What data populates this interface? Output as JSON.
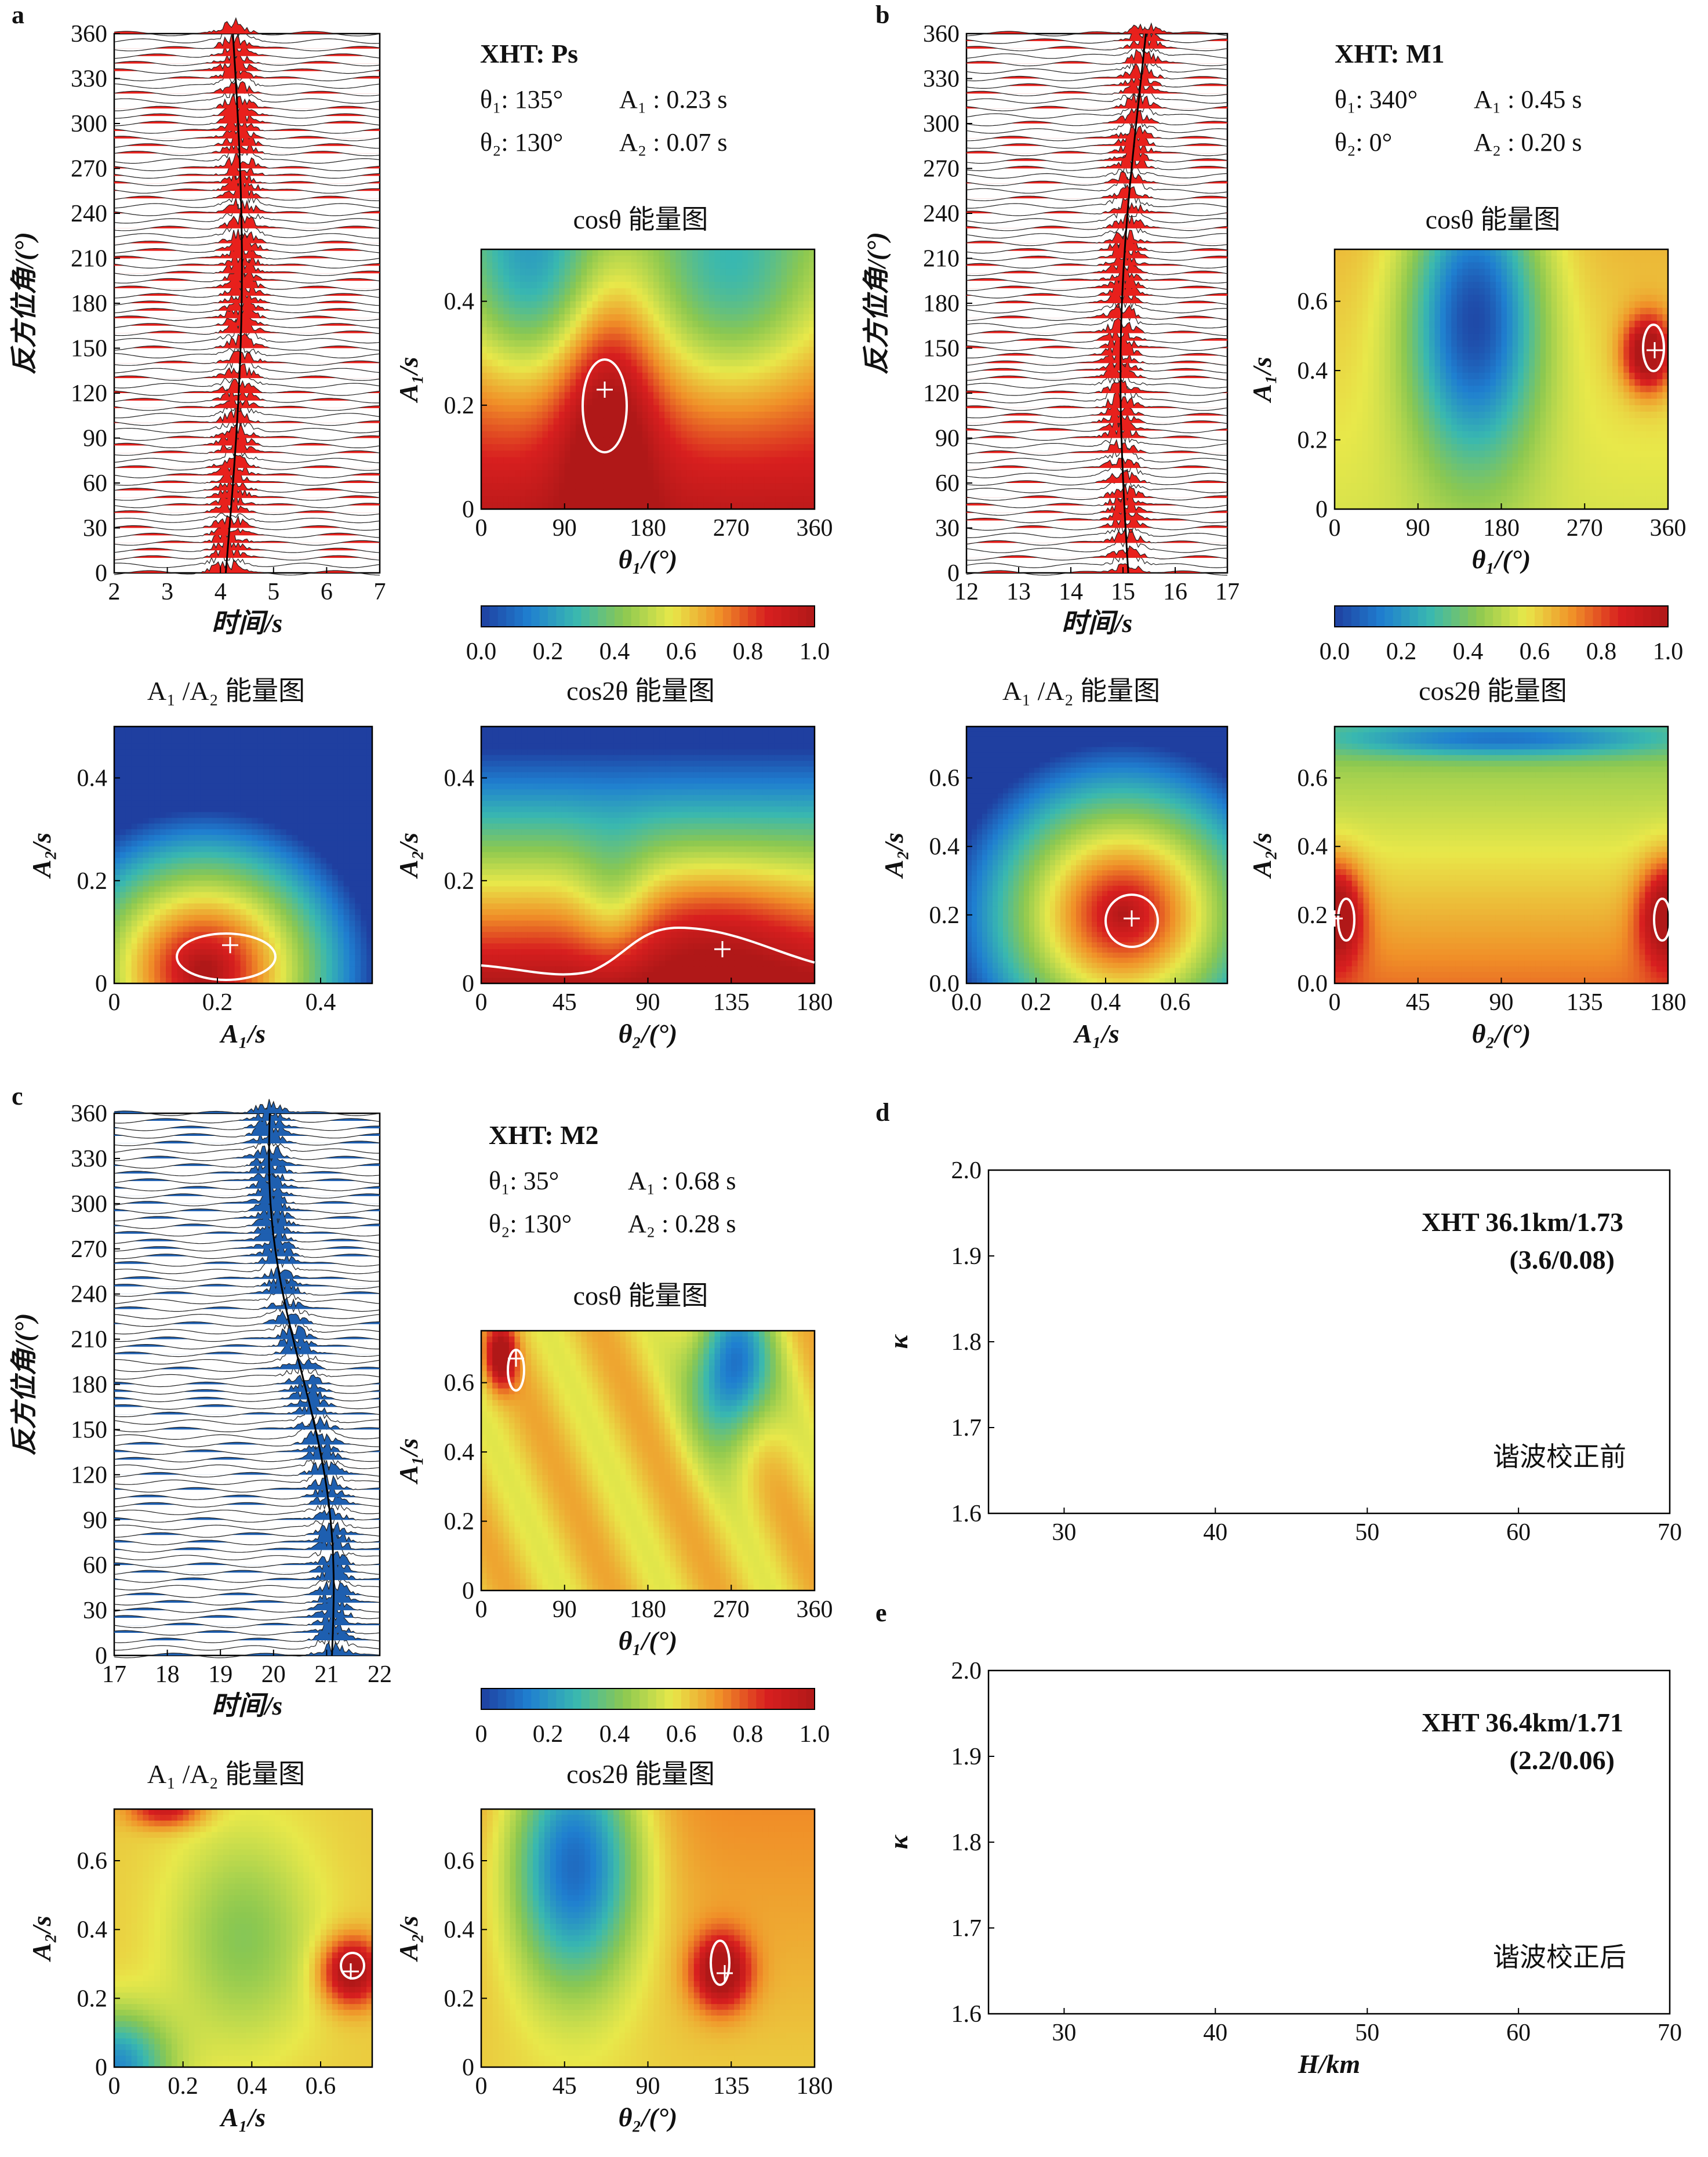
{
  "panels": {
    "a": {
      "letter": "a",
      "title": "XHT: Ps",
      "t1": "θ₁: 135°",
      "a1": "A₁ : 0.23 s",
      "t2": "θ₂: 130°",
      "a2": "A₂ : 0.07 s",
      "wave": {
        "xlabel": "时间/s",
        "ylabel": "反方位角/(°)",
        "xticks": [
          "2",
          "3",
          "4",
          "5",
          "6",
          "7"
        ],
        "ytick_vals": [
          0,
          30,
          60,
          90,
          120,
          150,
          180,
          210,
          240,
          270,
          300,
          330,
          360
        ],
        "fill": "#e8201c"
      },
      "cos": {
        "title": "cosθ 能量图",
        "xlabel": "θ₁/(°)",
        "ylabel": "A₁/s",
        "xticks": [
          "0",
          "90",
          "180",
          "270",
          "360"
        ],
        "yticks": [
          "0",
          "0.2",
          "0.4"
        ]
      },
      "a1a2": {
        "title": "A₁ /A₂ 能量图",
        "xlabel": "A₁/s",
        "ylabel": "A₂/s",
        "xticks": [
          "0",
          "0.2",
          "0.4"
        ],
        "yticks": [
          "0",
          "0.2",
          "0.4"
        ]
      },
      "cos2": {
        "title": "cos2θ 能量图",
        "xlabel": "θ₂/(°)",
        "ylabel": "A₂/s",
        "xticks": [
          "0",
          "45",
          "90",
          "135",
          "180"
        ],
        "yticks": [
          "0",
          "0.2",
          "0.4"
        ]
      }
    },
    "b": {
      "letter": "b",
      "title": "XHT: M1",
      "t1": "θ₁: 340°",
      "a1": "A₁ : 0.45 s",
      "t2": "θ₂: 0°",
      "a2": "A₂ : 0.20 s",
      "wave": {
        "xlabel": "时间/s",
        "ylabel": "反方位角/(°)",
        "xticks": [
          "12",
          "13",
          "14",
          "15",
          "16",
          "17"
        ],
        "ytick_vals": [
          0,
          30,
          60,
          90,
          120,
          150,
          180,
          210,
          240,
          270,
          300,
          330,
          360
        ],
        "fill": "#e8201c"
      },
      "cos": {
        "title": "cosθ 能量图",
        "xlabel": "θ₁/(°)",
        "ylabel": "A₁/s",
        "xticks": [
          "0",
          "90",
          "180",
          "270",
          "360"
        ],
        "yticks": [
          "0",
          "0.2",
          "0.4",
          "0.6"
        ]
      },
      "a1a2": {
        "title": "A₁ /A₂ 能量图",
        "xlabel": "A₁/s",
        "ylabel": "A₂/s",
        "xticks": [
          "0.0",
          "0.2",
          "0.4",
          "0.6"
        ],
        "yticks": [
          "0.0",
          "0.2",
          "0.4",
          "0.6"
        ]
      },
      "cos2": {
        "title": "cos2θ 能量图",
        "xlabel": "θ₂/(°)",
        "ylabel": "A₂/s",
        "xticks": [
          "0",
          "45",
          "90",
          "135",
          "180"
        ],
        "yticks": [
          "0.0",
          "0.2",
          "0.4",
          "0.6"
        ]
      }
    },
    "c": {
      "letter": "c",
      "title": "XHT: M2",
      "t1": "θ₁: 35°",
      "a1": "A₁ : 0.68 s",
      "t2": "θ₂: 130°",
      "a2": "A₂ : 0.28 s",
      "wave": {
        "xlabel": "时间/s",
        "ylabel": "反方位角/(°)",
        "xticks": [
          "17",
          "18",
          "19",
          "20",
          "21",
          "22"
        ],
        "ytick_vals": [
          0,
          30,
          60,
          90,
          120,
          150,
          180,
          210,
          240,
          270,
          300,
          330,
          360
        ],
        "fill": "#1e5fb0"
      },
      "cos": {
        "title": "cosθ 能量图",
        "xlabel": "θ₁/(°)",
        "ylabel": "A₁/s",
        "xticks": [
          "0",
          "90",
          "180",
          "270",
          "360"
        ],
        "yticks": [
          "0",
          "0.2",
          "0.4",
          "0.6"
        ]
      },
      "a1a2": {
        "title": "A₁ /A₂ 能量图",
        "xlabel": "A₁/s",
        "ylabel": "A₂/s",
        "xticks": [
          "0",
          "0.2",
          "0.4",
          "0.6"
        ],
        "yticks": [
          "0",
          "0.2",
          "0.4",
          "0.6"
        ]
      },
      "cos2": {
        "title": "cos2θ 能量图",
        "xlabel": "θ₂/(°)",
        "ylabel": "A₂/s",
        "xticks": [
          "0",
          "45",
          "90",
          "135",
          "180"
        ],
        "yticks": [
          "0",
          "0.2",
          "0.4",
          "0.6"
        ]
      }
    },
    "d": {
      "letter": "d",
      "label1": "XHT 36.1km/1.73",
      "label2": "(3.6/0.08)",
      "note": "谐波校正前",
      "xticks": [
        "30",
        "40",
        "50",
        "60",
        "70"
      ],
      "yticks": [
        "1.6",
        "1.7",
        "1.8",
        "1.9",
        "2.0"
      ],
      "ylabel": "κ"
    },
    "e": {
      "letter": "e",
      "label1": "XHT 36.4km/1.71",
      "label2": "(2.2/0.06)",
      "note": "谐波校正后",
      "xticks": [
        "30",
        "40",
        "50",
        "60",
        "70"
      ],
      "yticks": [
        "1.6",
        "1.7",
        "1.8",
        "1.9",
        "2.0"
      ],
      "ylabel": "κ",
      "xlabel": "H/km"
    }
  },
  "colorbar": {
    "ticks": [
      "0.0",
      "0.2",
      "0.4",
      "0.6",
      "0.8",
      "1.0"
    ],
    "ticks_c": [
      "0",
      "0.2",
      "0.4",
      "0.6",
      "0.8",
      "1.0"
    ],
    "colormap": [
      "#1f3fa0",
      "#1f7fd0",
      "#39b8b0",
      "#8cc850",
      "#e8e84a",
      "#f09028",
      "#d81f1f",
      "#b01818"
    ]
  },
  "chart_data": [
    {
      "type": "heatmap",
      "panel": "a",
      "name": "cosθ 能量图",
      "best": {
        "theta1": 135,
        "A1": 0.23
      },
      "xlim": [
        0,
        360
      ],
      "ylim": [
        0,
        0.5
      ]
    },
    {
      "type": "heatmap",
      "panel": "a",
      "name": "A₁ /A₂ 能量图",
      "best": {
        "A1": 0.23,
        "A2": 0.07
      },
      "xlim": [
        0,
        0.5
      ],
      "ylim": [
        0,
        0.5
      ]
    },
    {
      "type": "heatmap",
      "panel": "a",
      "name": "cos2θ 能量图",
      "best": {
        "theta2": 130,
        "A2": 0.07
      },
      "xlim": [
        0,
        180
      ],
      "ylim": [
        0,
        0.5
      ]
    },
    {
      "type": "heatmap",
      "panel": "b",
      "name": "cosθ 能量图",
      "best": {
        "theta1": 340,
        "A1": 0.45
      },
      "xlim": [
        0,
        360
      ],
      "ylim": [
        0,
        0.75
      ]
    },
    {
      "type": "heatmap",
      "panel": "b",
      "name": "A₁ /A₂ 能量图",
      "best": {
        "A1": 0.45,
        "A2": 0.2
      },
      "xlim": [
        0,
        0.75
      ],
      "ylim": [
        0,
        0.75
      ]
    },
    {
      "type": "heatmap",
      "panel": "b",
      "name": "cos2θ 能量图",
      "best": {
        "theta2": 0,
        "A2": 0.2
      },
      "xlim": [
        0,
        180
      ],
      "ylim": [
        0,
        0.75
      ]
    },
    {
      "type": "heatmap",
      "panel": "c",
      "name": "cosθ 能量图",
      "best": {
        "theta1": 35,
        "A1": 0.68
      },
      "xlim": [
        0,
        360
      ],
      "ylim": [
        0,
        0.75
      ]
    },
    {
      "type": "heatmap",
      "panel": "c",
      "name": "A₁ /A₂ 能量图",
      "best": {
        "A1": 0.68,
        "A2": 0.28
      },
      "xlim": [
        0,
        0.75
      ],
      "ylim": [
        0,
        0.75
      ]
    },
    {
      "type": "heatmap",
      "panel": "c",
      "name": "cos2θ 能量图",
      "best": {
        "theta2": 130,
        "A2": 0.28
      },
      "xlim": [
        0,
        180
      ],
      "ylim": [
        0,
        0.75
      ]
    },
    {
      "type": "heatmap",
      "panel": "d",
      "best": {
        "H": 36.1,
        "kappa": 1.73
      },
      "xlim": [
        25,
        70
      ],
      "ylim": [
        1.6,
        2.0
      ]
    },
    {
      "type": "heatmap",
      "panel": "e",
      "best": {
        "H": 36.4,
        "kappa": 1.71
      },
      "xlim": [
        25,
        70
      ],
      "ylim": [
        1.6,
        2.0
      ]
    }
  ]
}
